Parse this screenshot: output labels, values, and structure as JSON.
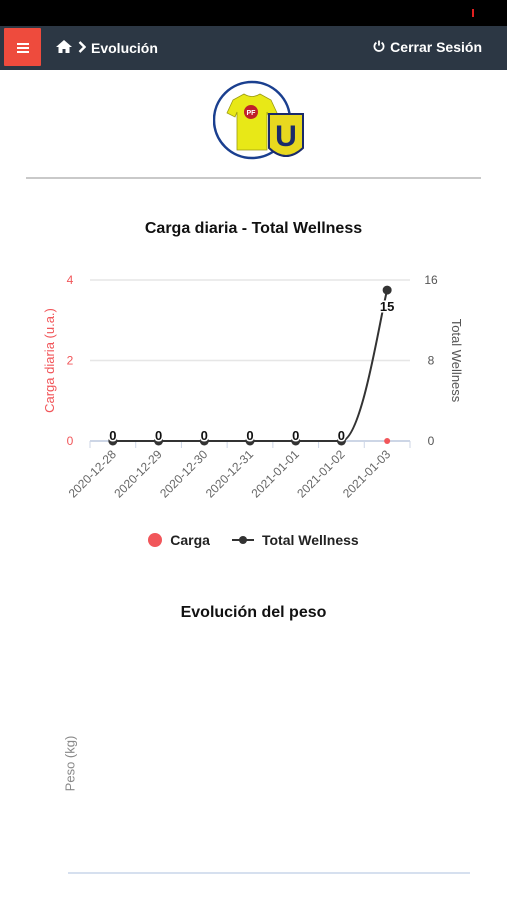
{
  "header": {
    "menu_icon": "hamburger-icon",
    "home_icon": "home-icon",
    "breadcrumb_sep_icon": "chevron-right-icon",
    "title": "Evolución",
    "logout_icon": "power-icon",
    "logout_label": "Cerrar Sesión",
    "colors": {
      "navbar": "#2c3744",
      "menu_button": "#ee4b3d"
    }
  },
  "logo": {
    "jersey_text": "PF",
    "crest_text": "U"
  },
  "chart_data": [
    {
      "type": "line",
      "title": "Carga diaria - Total Wellness",
      "categories": [
        "2020-12-28",
        "2020-12-29",
        "2020-12-30",
        "2020-12-31",
        "2021-01-01",
        "2021-01-02",
        "2021-01-03"
      ],
      "series": [
        {
          "name": "Carga",
          "axis": "left",
          "color": "#f1565a",
          "values": [
            0,
            0,
            0,
            0,
            0,
            0,
            0
          ]
        },
        {
          "name": "Total Wellness",
          "axis": "right",
          "color": "#333333",
          "values": [
            0,
            0,
            0,
            0,
            0,
            0,
            15
          ]
        }
      ],
      "ylabel_left": "Carga diaria (u.a.)",
      "ylabel_right": "Total Wellness",
      "ylim_left": [
        0,
        4
      ],
      "ylim_right": [
        0,
        16
      ],
      "yticks_left": [
        "0",
        "2",
        "4"
      ],
      "yticks_right": [
        "0",
        "8",
        "16"
      ],
      "grid": true,
      "legend_position": "bottom"
    },
    {
      "type": "line",
      "title": "Evolución del peso",
      "ylabel": "Peso (kg)",
      "series": []
    }
  ]
}
